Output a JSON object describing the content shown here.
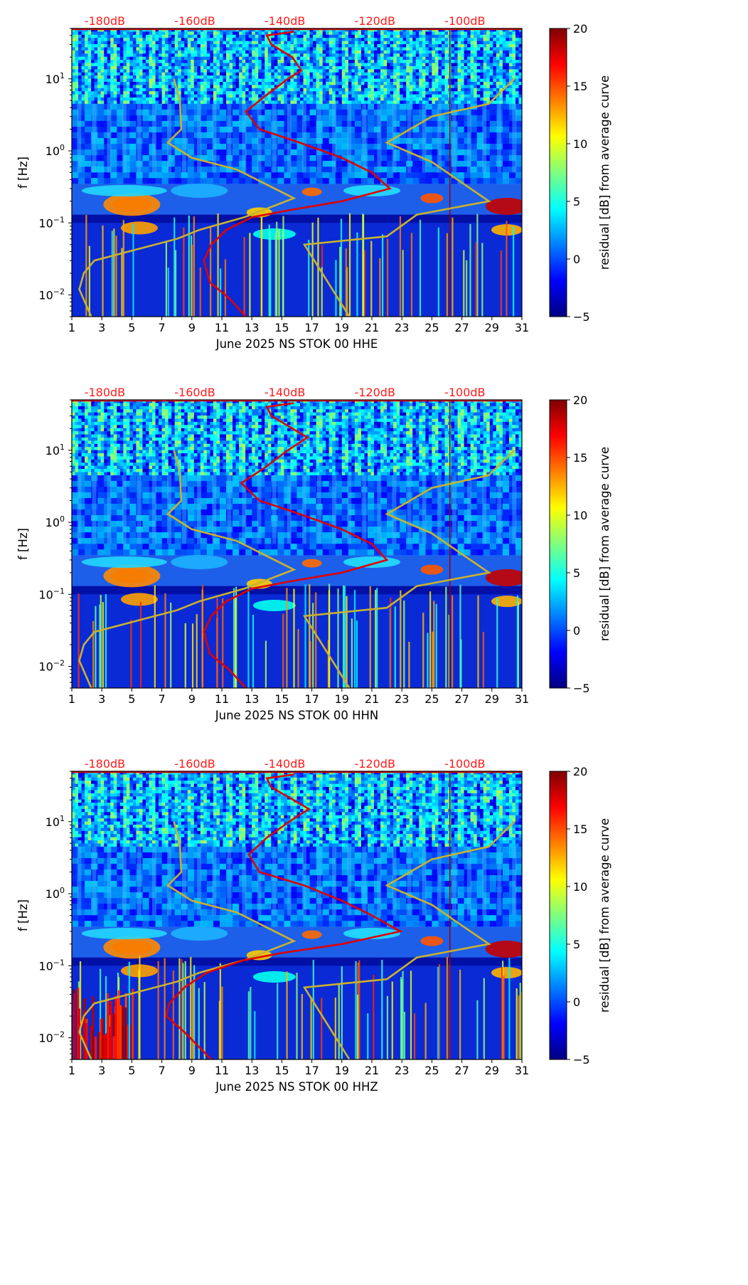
{
  "colors": {
    "noise_model": "#ff1a1a",
    "median_curve": "#e00000",
    "reference_curve": "#c9b22e",
    "colormap": [
      "#00007f",
      "#0000ff",
      "#007fff",
      "#00ffff",
      "#7fff7f",
      "#ffff00",
      "#ff7f00",
      "#ff0000",
      "#7f0000"
    ]
  },
  "chart_data": [
    {
      "type": "heatmap",
      "xlabel": "June 2025 NS STOK 00 HHE",
      "ylabel": "f [Hz]",
      "colorbar_label": "residual [dB] from average curve",
      "colorbar_ticks": [
        "20",
        "15",
        "10",
        "5",
        "0",
        "−5"
      ],
      "colorbar_range": [
        -5,
        20
      ],
      "x_ticks": [
        "1",
        "3",
        "5",
        "7",
        "9",
        "11",
        "13",
        "15",
        "17",
        "19",
        "21",
        "23",
        "25",
        "27",
        "29",
        "31"
      ],
      "xlim": [
        1,
        31
      ],
      "y_ticks": [
        {
          "base": "10",
          "exp": "1",
          "value": 10
        },
        {
          "base": "10",
          "exp": "0",
          "value": 1
        },
        {
          "base": "10",
          "exp": "−1",
          "value": 0.1
        },
        {
          "base": "10",
          "exp": "−2",
          "value": 0.01
        }
      ],
      "ylim": [
        0.005,
        50
      ],
      "db_scale_labels": [
        "-180dB",
        "-160dB",
        "-140dB",
        "-120dB",
        "-100dB"
      ],
      "median_curve": [
        [
          15.8,
          45
        ],
        [
          14.0,
          40
        ],
        [
          14.3,
          30
        ],
        [
          15.7,
          20
        ],
        [
          16.3,
          13
        ],
        [
          15.4,
          10
        ],
        [
          14.0,
          6
        ],
        [
          12.6,
          3.5
        ],
        [
          13.5,
          2
        ],
        [
          16.2,
          1.3
        ],
        [
          19,
          0.8
        ],
        [
          21,
          0.5
        ],
        [
          22.2,
          0.3
        ],
        [
          19,
          0.2
        ],
        [
          15.5,
          0.15
        ],
        [
          13,
          0.12
        ],
        [
          11.3,
          0.08
        ],
        [
          10.3,
          0.05
        ],
        [
          9.8,
          0.03
        ],
        [
          10.2,
          0.015
        ],
        [
          11.5,
          0.009
        ],
        [
          12.6,
          0.005
        ]
      ],
      "reference_curves": [
        [
          [
            7.8,
            10
          ],
          [
            8.2,
            5
          ],
          [
            8.3,
            2
          ],
          [
            7.4,
            1.3
          ],
          [
            9.0,
            0.8
          ],
          [
            12.0,
            0.55
          ],
          [
            15.8,
            0.22
          ],
          [
            12.5,
            0.12
          ],
          [
            9.5,
            0.08
          ],
          [
            8.0,
            0.06
          ],
          [
            2.5,
            0.03
          ],
          [
            1.8,
            0.02
          ],
          [
            1.5,
            0.012
          ],
          [
            2.3,
            0.005
          ]
        ],
        [
          [
            30.5,
            10
          ],
          [
            28.8,
            4.5
          ],
          [
            25.0,
            3.0
          ],
          [
            22.0,
            1.3
          ],
          [
            25.0,
            0.7
          ],
          [
            28.8,
            0.2
          ],
          [
            24.0,
            0.13
          ],
          [
            22.0,
            0.065
          ],
          [
            16.5,
            0.05
          ],
          [
            19.5,
            0.005
          ]
        ]
      ]
    },
    {
      "type": "heatmap",
      "xlabel": "June 2025 NS STOK 00 HHN",
      "ylabel": "f [Hz]",
      "colorbar_label": "residual [dB] from average curve",
      "colorbar_ticks": [
        "20",
        "15",
        "10",
        "5",
        "0",
        "−5"
      ],
      "colorbar_range": [
        -5,
        20
      ],
      "x_ticks": [
        "1",
        "3",
        "5",
        "7",
        "9",
        "11",
        "13",
        "15",
        "17",
        "19",
        "21",
        "23",
        "25",
        "27",
        "29",
        "31"
      ],
      "xlim": [
        1,
        31
      ],
      "y_ticks": [
        {
          "base": "10",
          "exp": "1",
          "value": 10
        },
        {
          "base": "10",
          "exp": "0",
          "value": 1
        },
        {
          "base": "10",
          "exp": "−1",
          "value": 0.1
        },
        {
          "base": "10",
          "exp": "−2",
          "value": 0.01
        }
      ],
      "ylim": [
        0.005,
        50
      ],
      "db_scale_labels": [
        "-180dB",
        "-160dB",
        "-140dB",
        "-120dB",
        "-100dB"
      ],
      "median_curve": [
        [
          15.8,
          45
        ],
        [
          14.0,
          40
        ],
        [
          14.3,
          30
        ],
        [
          16.7,
          15
        ],
        [
          15.4,
          10
        ],
        [
          14.0,
          6
        ],
        [
          12.3,
          3.5
        ],
        [
          13.5,
          2
        ],
        [
          16.2,
          1.3
        ],
        [
          19,
          0.8
        ],
        [
          21,
          0.5
        ],
        [
          22.0,
          0.3
        ],
        [
          19,
          0.2
        ],
        [
          15.5,
          0.15
        ],
        [
          13,
          0.12
        ],
        [
          11.3,
          0.08
        ],
        [
          10.3,
          0.05
        ],
        [
          9.8,
          0.03
        ],
        [
          10.2,
          0.015
        ],
        [
          11.5,
          0.009
        ],
        [
          12.6,
          0.005
        ]
      ],
      "reference_curves": [
        [
          [
            7.8,
            10
          ],
          [
            8.2,
            5
          ],
          [
            8.3,
            2
          ],
          [
            7.4,
            1.3
          ],
          [
            9.0,
            0.8
          ],
          [
            12.0,
            0.55
          ],
          [
            15.8,
            0.22
          ],
          [
            12.5,
            0.12
          ],
          [
            9.5,
            0.08
          ],
          [
            8.0,
            0.06
          ],
          [
            2.5,
            0.03
          ],
          [
            1.8,
            0.02
          ],
          [
            1.5,
            0.012
          ],
          [
            2.3,
            0.005
          ]
        ],
        [
          [
            30.5,
            10
          ],
          [
            28.8,
            4.5
          ],
          [
            25.0,
            3.0
          ],
          [
            22.0,
            1.3
          ],
          [
            25.0,
            0.7
          ],
          [
            28.8,
            0.2
          ],
          [
            24.0,
            0.13
          ],
          [
            22.0,
            0.065
          ],
          [
            16.5,
            0.05
          ],
          [
            19.5,
            0.005
          ]
        ]
      ]
    },
    {
      "type": "heatmap",
      "xlabel": "June 2025 NS STOK 00 HHZ",
      "ylabel": "f [Hz]",
      "colorbar_label": "residual [dB] from average curve",
      "colorbar_ticks": [
        "20",
        "15",
        "10",
        "5",
        "0",
        "−5"
      ],
      "colorbar_range": [
        -5,
        20
      ],
      "x_ticks": [
        "1",
        "3",
        "5",
        "7",
        "9",
        "11",
        "13",
        "15",
        "17",
        "19",
        "21",
        "23",
        "25",
        "27",
        "29",
        "31"
      ],
      "xlim": [
        1,
        31
      ],
      "y_ticks": [
        {
          "base": "10",
          "exp": "1",
          "value": 10
        },
        {
          "base": "10",
          "exp": "0",
          "value": 1
        },
        {
          "base": "10",
          "exp": "−1",
          "value": 0.1
        },
        {
          "base": "10",
          "exp": "−2",
          "value": 0.01
        }
      ],
      "ylim": [
        0.005,
        50
      ],
      "db_scale_labels": [
        "-180dB",
        "-160dB",
        "-140dB",
        "-120dB",
        "-100dB"
      ],
      "median_curve": [
        [
          15.8,
          45
        ],
        [
          14.0,
          40
        ],
        [
          14.3,
          30
        ],
        [
          16.8,
          15
        ],
        [
          15.5,
          10
        ],
        [
          14.0,
          6
        ],
        [
          12.8,
          3.5
        ],
        [
          13.5,
          2
        ],
        [
          16.5,
          1.3
        ],
        [
          19,
          0.8
        ],
        [
          21,
          0.5
        ],
        [
          22.9,
          0.3
        ],
        [
          19,
          0.2
        ],
        [
          15,
          0.15
        ],
        [
          12.5,
          0.12
        ],
        [
          10.0,
          0.08
        ],
        [
          8.5,
          0.05
        ],
        [
          7.5,
          0.03
        ],
        [
          7.3,
          0.02
        ],
        [
          8.5,
          0.012
        ],
        [
          10.3,
          0.005
        ]
      ],
      "reference_curves": [
        [
          [
            7.8,
            10
          ],
          [
            8.2,
            5
          ],
          [
            8.3,
            2
          ],
          [
            7.4,
            1.3
          ],
          [
            9.0,
            0.8
          ],
          [
            12.0,
            0.55
          ],
          [
            15.8,
            0.22
          ],
          [
            12.5,
            0.12
          ],
          [
            9.5,
            0.08
          ],
          [
            8.0,
            0.06
          ],
          [
            2.5,
            0.03
          ],
          [
            1.8,
            0.02
          ],
          [
            1.5,
            0.012
          ],
          [
            2.3,
            0.005
          ]
        ],
        [
          [
            30.5,
            10
          ],
          [
            28.8,
            4.5
          ],
          [
            25.0,
            3.0
          ],
          [
            22.0,
            1.3
          ],
          [
            25.0,
            0.7
          ],
          [
            28.8,
            0.2
          ],
          [
            24.0,
            0.13
          ],
          [
            22.0,
            0.065
          ],
          [
            16.5,
            0.05
          ],
          [
            19.5,
            0.005
          ]
        ]
      ]
    }
  ]
}
